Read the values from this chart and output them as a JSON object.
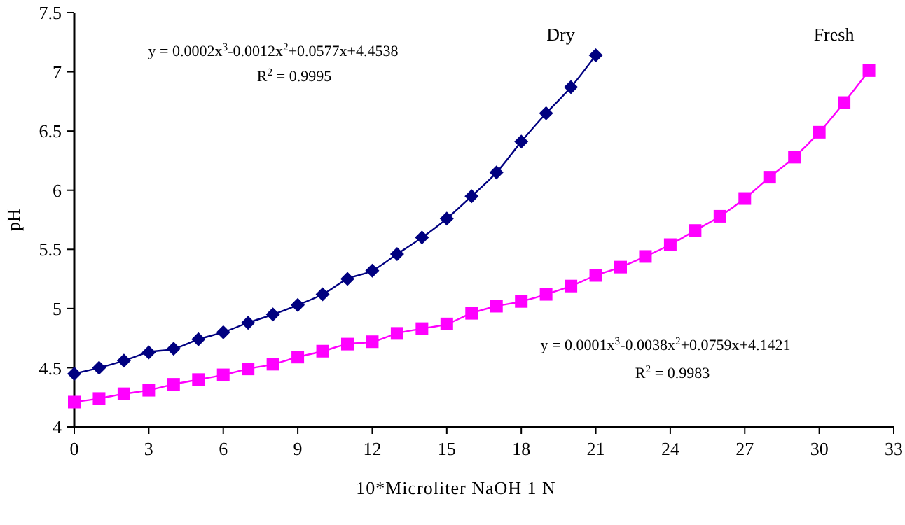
{
  "chart_data": {
    "type": "line",
    "xlabel": "10*Microliter NaOH 1 N",
    "ylabel": "pH",
    "xlim": [
      0,
      33
    ],
    "xticks": [
      0,
      3,
      6,
      9,
      12,
      15,
      18,
      21,
      24,
      27,
      30,
      33
    ],
    "ylim": [
      4,
      7.5
    ],
    "yticks": [
      4,
      4.5,
      5,
      5.5,
      6,
      6.5,
      7,
      7.5
    ],
    "grid": false,
    "annotations": [
      "y = 0.0002x$^{3}$-0.0012x$^{2}$+0.0577x+4.4538",
      "R$^{2}$ = 0.9995",
      "y = 0.0001x$^{3}$-0.0038x$^{2}$+0.0759x+4.1421",
      "R$^{2}$ = 0.9983"
    ],
    "series": [
      {
        "name": "Dry",
        "color": "#000080",
        "marker": "diamond",
        "x": [
          0,
          1,
          2,
          3,
          4,
          5,
          6,
          7,
          8,
          9,
          10,
          11,
          12,
          13,
          14,
          15,
          16,
          17,
          18,
          19,
          20,
          21
        ],
        "values": [
          4.45,
          4.5,
          4.56,
          4.63,
          4.66,
          4.74,
          4.8,
          4.88,
          4.95,
          5.03,
          5.12,
          5.25,
          5.32,
          5.46,
          5.6,
          5.76,
          5.95,
          6.15,
          6.41,
          6.65,
          6.87,
          7.14
        ]
      },
      {
        "name": "Fresh",
        "color": "#ff00ff",
        "marker": "square",
        "x": [
          0,
          1,
          2,
          3,
          4,
          5,
          6,
          7,
          8,
          9,
          10,
          11,
          12,
          13,
          14,
          15,
          16,
          17,
          18,
          19,
          20,
          21,
          22,
          23,
          24,
          25,
          26,
          27,
          28,
          29,
          30,
          31,
          32
        ],
        "values": [
          4.21,
          4.24,
          4.28,
          4.31,
          4.36,
          4.4,
          4.44,
          4.49,
          4.53,
          4.59,
          4.64,
          4.7,
          4.72,
          4.79,
          4.83,
          4.87,
          4.96,
          5.02,
          5.06,
          5.12,
          5.19,
          5.28,
          5.35,
          5.44,
          5.54,
          5.66,
          5.78,
          5.93,
          6.11,
          6.28,
          6.49,
          6.74,
          7.01
        ]
      }
    ]
  }
}
